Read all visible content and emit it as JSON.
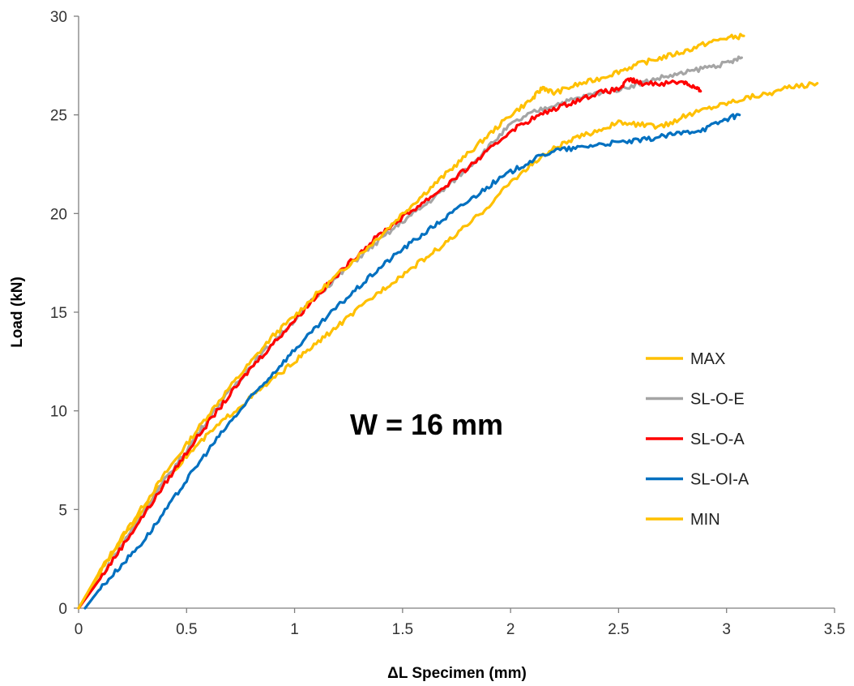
{
  "chart_data": {
    "type": "line",
    "title": "",
    "xlabel": "ΔL Specimen (mm)",
    "ylabel": "Load (kN)",
    "xlim": [
      0,
      3.5
    ],
    "ylim": [
      0,
      30
    ],
    "x_ticks": [
      0,
      0.5,
      1,
      1.5,
      2,
      2.5,
      3,
      3.5
    ],
    "x_tick_labels": [
      "0",
      "0.5",
      "1",
      "1.5",
      "2",
      "2.5",
      "3",
      "3.5"
    ],
    "y_ticks": [
      0,
      5,
      10,
      15,
      20,
      25,
      30
    ],
    "y_tick_labels": [
      "0",
      "5",
      "10",
      "15",
      "20",
      "25",
      "30"
    ],
    "grid": false,
    "legend_position": "right",
    "annotation": "W =  16 mm",
    "series": [
      {
        "name": "MAX",
        "color": "#FFC000",
        "points": [
          [
            0,
            0
          ],
          [
            0.1,
            1.9
          ],
          [
            0.2,
            3.6
          ],
          [
            0.3,
            5.2
          ],
          [
            0.4,
            6.8
          ],
          [
            0.5,
            8.3
          ],
          [
            0.6,
            9.8
          ],
          [
            0.7,
            11.2
          ],
          [
            0.8,
            12.5
          ],
          [
            0.9,
            13.8
          ],
          [
            1.0,
            14.8
          ],
          [
            1.1,
            15.9
          ],
          [
            1.2,
            16.9
          ],
          [
            1.3,
            17.9
          ],
          [
            1.4,
            18.9
          ],
          [
            1.5,
            20.0
          ],
          [
            1.6,
            21.0
          ],
          [
            1.7,
            22.0
          ],
          [
            1.8,
            23.0
          ],
          [
            1.9,
            24.0
          ],
          [
            2.0,
            25.0
          ],
          [
            2.1,
            25.8
          ],
          [
            2.15,
            26.4
          ],
          [
            2.2,
            26.1
          ],
          [
            2.3,
            26.5
          ],
          [
            2.4,
            26.8
          ],
          [
            2.5,
            27.2
          ],
          [
            2.6,
            27.6
          ],
          [
            2.7,
            27.9
          ],
          [
            2.8,
            28.2
          ],
          [
            2.9,
            28.6
          ],
          [
            3.0,
            28.9
          ],
          [
            3.08,
            29.0
          ]
        ]
      },
      {
        "name": "SL-O-E",
        "color": "#A5A5A5",
        "points": [
          [
            0,
            0
          ],
          [
            0.1,
            1.5
          ],
          [
            0.2,
            3.2
          ],
          [
            0.3,
            4.8
          ],
          [
            0.4,
            6.5
          ],
          [
            0.5,
            8.0
          ],
          [
            0.6,
            9.6
          ],
          [
            0.7,
            11.0
          ],
          [
            0.8,
            12.3
          ],
          [
            0.9,
            13.5
          ],
          [
            1.0,
            14.6
          ],
          [
            1.1,
            15.8
          ],
          [
            1.2,
            16.8
          ],
          [
            1.3,
            17.8
          ],
          [
            1.4,
            18.7
          ],
          [
            1.5,
            19.6
          ],
          [
            1.6,
            20.4
          ],
          [
            1.7,
            21.3
          ],
          [
            1.8,
            22.3
          ],
          [
            1.9,
            23.4
          ],
          [
            2.0,
            24.5
          ],
          [
            2.1,
            25.1
          ],
          [
            2.2,
            25.5
          ],
          [
            2.3,
            25.8
          ],
          [
            2.4,
            26.1
          ],
          [
            2.5,
            26.3
          ],
          [
            2.6,
            26.6
          ],
          [
            2.7,
            26.9
          ],
          [
            2.8,
            27.1
          ],
          [
            2.9,
            27.4
          ],
          [
            3.0,
            27.6
          ],
          [
            3.07,
            27.9
          ]
        ]
      },
      {
        "name": "SL-O-A",
        "color": "#FF0000",
        "points": [
          [
            0,
            0
          ],
          [
            0.1,
            1.5
          ],
          [
            0.2,
            3.1
          ],
          [
            0.3,
            4.7
          ],
          [
            0.4,
            6.3
          ],
          [
            0.5,
            7.9
          ],
          [
            0.6,
            9.4
          ],
          [
            0.7,
            10.8
          ],
          [
            0.8,
            12.2
          ],
          [
            0.9,
            13.4
          ],
          [
            1.0,
            14.6
          ],
          [
            1.1,
            15.8
          ],
          [
            1.2,
            16.9
          ],
          [
            1.3,
            18.0
          ],
          [
            1.4,
            19.0
          ],
          [
            1.5,
            19.8
          ],
          [
            1.6,
            20.6
          ],
          [
            1.7,
            21.4
          ],
          [
            1.8,
            22.3
          ],
          [
            1.9,
            23.2
          ],
          [
            2.0,
            24.2
          ],
          [
            2.1,
            24.8
          ],
          [
            2.2,
            25.3
          ],
          [
            2.3,
            25.7
          ],
          [
            2.4,
            26.1
          ],
          [
            2.5,
            26.3
          ],
          [
            2.55,
            26.8
          ],
          [
            2.6,
            26.6
          ],
          [
            2.7,
            26.6
          ],
          [
            2.8,
            26.7
          ],
          [
            2.85,
            26.4
          ],
          [
            2.88,
            26.2
          ]
        ]
      },
      {
        "name": "SL-OI-A",
        "color": "#0070C0",
        "points": [
          [
            0.03,
            0
          ],
          [
            0.1,
            1.0
          ],
          [
            0.2,
            2.2
          ],
          [
            0.3,
            3.4
          ],
          [
            0.4,
            4.9
          ],
          [
            0.5,
            6.5
          ],
          [
            0.6,
            8.0
          ],
          [
            0.7,
            9.4
          ],
          [
            0.8,
            10.7
          ],
          [
            0.9,
            11.9
          ],
          [
            1.0,
            13.1
          ],
          [
            1.1,
            14.2
          ],
          [
            1.2,
            15.3
          ],
          [
            1.3,
            16.3
          ],
          [
            1.4,
            17.3
          ],
          [
            1.5,
            18.2
          ],
          [
            1.6,
            19.0
          ],
          [
            1.7,
            19.8
          ],
          [
            1.8,
            20.6
          ],
          [
            1.9,
            21.4
          ],
          [
            2.0,
            22.1
          ],
          [
            2.1,
            22.7
          ],
          [
            2.2,
            23.2
          ],
          [
            2.3,
            23.3
          ],
          [
            2.4,
            23.5
          ],
          [
            2.5,
            23.6
          ],
          [
            2.6,
            23.7
          ],
          [
            2.7,
            23.9
          ],
          [
            2.8,
            24.1
          ],
          [
            2.9,
            24.3
          ],
          [
            3.0,
            24.8
          ],
          [
            3.06,
            25.0
          ]
        ]
      },
      {
        "name": "MIN",
        "color": "#FFC000",
        "points": [
          [
            0,
            0
          ],
          [
            0.1,
            1.8
          ],
          [
            0.2,
            3.5
          ],
          [
            0.3,
            5.0
          ],
          [
            0.4,
            6.5
          ],
          [
            0.5,
            7.7
          ],
          [
            0.6,
            8.8
          ],
          [
            0.7,
            9.8
          ],
          [
            0.8,
            10.7
          ],
          [
            0.9,
            11.6
          ],
          [
            1.0,
            12.5
          ],
          [
            1.1,
            13.4
          ],
          [
            1.2,
            14.3
          ],
          [
            1.3,
            15.2
          ],
          [
            1.4,
            16.1
          ],
          [
            1.5,
            16.9
          ],
          [
            1.6,
            17.7
          ],
          [
            1.7,
            18.5
          ],
          [
            1.8,
            19.4
          ],
          [
            1.9,
            20.4
          ],
          [
            2.0,
            21.6
          ],
          [
            2.1,
            22.5
          ],
          [
            2.2,
            23.3
          ],
          [
            2.3,
            23.8
          ],
          [
            2.4,
            24.2
          ],
          [
            2.5,
            24.6
          ],
          [
            2.6,
            24.5
          ],
          [
            2.7,
            24.4
          ],
          [
            2.8,
            24.9
          ],
          [
            2.9,
            25.3
          ],
          [
            3.0,
            25.6
          ],
          [
            3.1,
            25.9
          ],
          [
            3.2,
            26.1
          ],
          [
            3.3,
            26.4
          ],
          [
            3.42,
            26.6
          ]
        ]
      }
    ]
  }
}
